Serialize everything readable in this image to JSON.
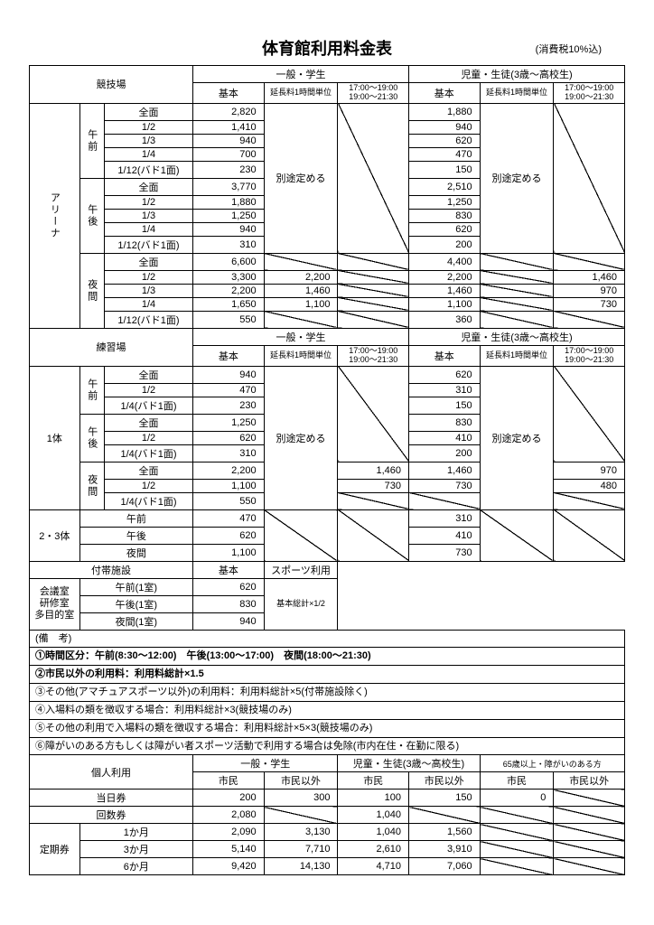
{
  "title": "体育館利用料金表",
  "tax_note": "(消費税10%込)",
  "headers": {
    "arena_label": "競技場",
    "general_student": "一般・学生",
    "child_student": "児童・生徒(3歳～高校生)",
    "base": "基本",
    "ext_unit": "延長料1時間単位",
    "time_ranges": [
      "17:00～19:00",
      "19:00～21:30"
    ],
    "practice_label": "練習場",
    "facilities": "付帯施設",
    "sports_use": "スポーツ利用",
    "personal": "個人利用",
    "adult65": "65歳以上・障がいのある方",
    "citizen": "市民",
    "non_citizen": "市民以外"
  },
  "arena": {
    "section": "アリーナ",
    "morning": "午前",
    "afternoon": "午後",
    "evening": "夜間",
    "rows_am": [
      {
        "label": "全面",
        "g": "2,820",
        "c": "1,880"
      },
      {
        "label": "1/2",
        "g": "1,410",
        "c": "940"
      },
      {
        "label": "1/3",
        "g": "940",
        "c": "620"
      },
      {
        "label": "1/4",
        "g": "700",
        "c": "470"
      },
      {
        "label": "1/12(バド1面)",
        "g": "230",
        "c": "150"
      }
    ],
    "rows_pm": [
      {
        "label": "全面",
        "g": "3,770",
        "c": "2,510"
      },
      {
        "label": "1/2",
        "g": "1,880",
        "c": "1,250"
      },
      {
        "label": "1/3",
        "g": "1,250",
        "c": "830"
      },
      {
        "label": "1/4",
        "g": "940",
        "c": "620"
      },
      {
        "label": "1/12(バド1面)",
        "g": "310",
        "c": "200"
      }
    ],
    "rows_ev": [
      {
        "label": "全面",
        "g": "6,600",
        "g2": "",
        "g3": "",
        "c": "4,400",
        "c2": "",
        "c3": ""
      },
      {
        "label": "1/2",
        "g": "3,300",
        "g2": "2,200",
        "g3": "",
        "c": "2,200",
        "c2": "",
        "c3": "1,460"
      },
      {
        "label": "1/3",
        "g": "2,200",
        "g2": "1,460",
        "g3": "",
        "c": "1,460",
        "c2": "",
        "c3": "970"
      },
      {
        "label": "1/4",
        "g": "1,650",
        "g2": "1,100",
        "g3": "",
        "c": "1,100",
        "c2": "",
        "c3": "730"
      },
      {
        "label": "1/12(バド1面)",
        "g": "550",
        "g2": "",
        "g3": "",
        "c": "360",
        "c2": "",
        "c3": ""
      }
    ],
    "separately": "別途定める"
  },
  "practice": {
    "body1": "1体",
    "body23": "2・3体",
    "rows_am": [
      {
        "label": "全面",
        "g": "940",
        "c": "620"
      },
      {
        "label": "1/2",
        "g": "470",
        "c": "310"
      },
      {
        "label": "1/4(バド1面)",
        "g": "230",
        "c": "150"
      }
    ],
    "rows_pm": [
      {
        "label": "全面",
        "g": "1,250",
        "c": "830"
      },
      {
        "label": "1/2",
        "g": "620",
        "c": "410"
      },
      {
        "label": "1/4(バド1面)",
        "g": "310",
        "c": "200"
      }
    ],
    "rows_ev": [
      {
        "label": "全面",
        "g": "2,200",
        "g2": "1,460",
        "c": "1,460",
        "c3": "970"
      },
      {
        "label": "1/2",
        "g": "1,100",
        "g2": "730",
        "c": "730",
        "c3": "480"
      },
      {
        "label": "1/4(バド1面)",
        "g": "550",
        "g2": "",
        "c": "",
        "c3": ""
      }
    ],
    "rows_23": [
      {
        "label": "午前",
        "g": "470",
        "c": "310"
      },
      {
        "label": "午後",
        "g": "620",
        "c": "410"
      },
      {
        "label": "夜間",
        "g": "1,100",
        "c": "730"
      }
    ]
  },
  "facilities": {
    "meeting_room": "会議室\n研修室\n多目的室",
    "rows": [
      {
        "label": "午前(1室)",
        "v": "620"
      },
      {
        "label": "午後(1室)",
        "v": "830"
      },
      {
        "label": "夜間(1室)",
        "v": "940"
      }
    ],
    "half": "基本総計×1/2"
  },
  "notes_header": "(備　考)",
  "notes": [
    "①時間区分：午前(8:30～12:00)　午後(13:00～17:00)　夜間(18:00～21:30)",
    "②市民以外の利用料：利用料総計×1.5",
    "③その他(アマチュアスポーツ以外)の利用料：利用料総計×5(付帯施設除く)",
    "④入場料の類を徴収する場合：利用料総計×3(競技場のみ)",
    "⑤その他の利用で入場料の類を徴収する場合：利用料総計×5×3(競技場のみ)",
    "⑥障がいのある方もしくは障がい者スポーツ活動で利用する場合は免除(市内在住・在勤に限る)"
  ],
  "personal": {
    "rows": [
      {
        "label": "当日券",
        "g1": "200",
        "g2": "300",
        "c1": "100",
        "c2": "150",
        "e1": "0",
        "e2": "diag"
      },
      {
        "label": "回数券",
        "g1": "2,080",
        "g2": "diag",
        "c1": "1,040",
        "c2": "diag",
        "e1": "diag",
        "e2": "diag"
      }
    ],
    "pass_label": "定期券",
    "pass_rows": [
      {
        "label": "1か月",
        "g1": "2,090",
        "g2": "3,130",
        "c1": "1,040",
        "c2": "1,560",
        "e1": "diag",
        "e2": "diag"
      },
      {
        "label": "3か月",
        "g1": "5,140",
        "g2": "7,710",
        "c1": "2,610",
        "c2": "3,910",
        "e1": "diag",
        "e2": "diag"
      },
      {
        "label": "6か月",
        "g1": "9,420",
        "g2": "14,130",
        "c1": "4,710",
        "c2": "7,060",
        "e1": "diag",
        "e2": "diag"
      }
    ]
  },
  "colw": {
    "c0": 25,
    "c1": 25,
    "c2": 90,
    "c3": 72,
    "c4": 72,
    "c5": 72,
    "c6": 72,
    "c7": 72,
    "c8": 72
  }
}
